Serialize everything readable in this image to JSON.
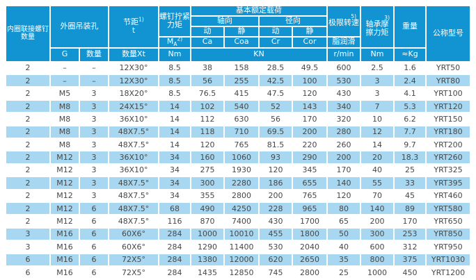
{
  "colors": {
    "header_bg": "#1294d2",
    "stripe_bg": "#a8d8f1",
    "header_text": "#ffffff",
    "data_text": "#474747",
    "grid": "#ffffff"
  },
  "header": {
    "inner_ring_screw_count": "内圈联接螺钉\n数量",
    "outer_ring_lifting_holes": "外圈吊装孔",
    "g": "G",
    "quantity": "数量",
    "pitch": "节距",
    "pitch_sup": "1)",
    "pitch_symbol": "t",
    "pitch_qty_x_t": "数量Xt",
    "screw_tightening_torque": "螺钉拧紧\n力矩",
    "ma_m": "M",
    "ma_sub": "A",
    "ma_sup": "2)",
    "torque_unit": "Nm",
    "basic_rated_load": "基本额定载荷",
    "axial": "轴向",
    "radial": "径向",
    "dynamic_axial": "动",
    "static_axial": "静",
    "dynamic_radial": "动",
    "static_radial": "静",
    "ca": "Ca",
    "coa": "Coa",
    "cr": "Cr",
    "cor": "Cor",
    "load_unit": "KN",
    "limiting_speed": "极限转速",
    "limiting_speed_sup": "5)",
    "grease_lubrication": "脂润滑",
    "speed_unit": "r/min",
    "friction_torque": "轴承摩\n擦力矩",
    "friction_torque_sup": "3)",
    "friction_unit": "Nm",
    "weight": "重量",
    "weight_unit": "≈Kg",
    "model": "公称型号"
  },
  "column_keys": [
    "inner-ring-screw-count",
    "lifting-hole-thread-g",
    "lifting-hole-qty",
    "pitch-qty-x-t",
    "tightening-torque-nm",
    "ca-kn",
    "coa-kn",
    "cr-kn",
    "cor-kn",
    "limiting-speed-rpm",
    "friction-torque-nm",
    "weight-kg",
    "model"
  ],
  "rows": [
    [
      "2",
      "–",
      "–",
      "12X30°",
      "8.5",
      "38",
      "158",
      "28.5",
      "49.5",
      "600",
      "2.5",
      "1.6",
      "YRT50"
    ],
    [
      "2",
      "–",
      "–",
      "12X30°",
      "8.5",
      "56",
      "255",
      "42.5",
      "100",
      "530",
      "3",
      "2.4",
      "YRT80"
    ],
    [
      "2",
      "M5",
      "3",
      "18X20°",
      "8.5",
      "76.5",
      "415",
      "47.5",
      "120",
      "430",
      "3",
      "4.1",
      "YRT100"
    ],
    [
      "2",
      "M8",
      "3",
      "24X15°",
      "14",
      "102",
      "540",
      "52",
      "143",
      "340",
      "7",
      "5.3",
      "YRT120"
    ],
    [
      "2",
      "M8",
      "3",
      "36X10°",
      "14",
      "112",
      "630",
      "56",
      "170",
      "320",
      "10",
      "6.2",
      "YRT150"
    ],
    [
      "2",
      "M8",
      "3",
      "48X7.5°",
      "14",
      "118",
      "710",
      "69.5",
      "200",
      "280",
      "12",
      "7.7",
      "YRT180"
    ],
    [
      "2",
      "M8",
      "3",
      "48X7.5°",
      "14",
      "120",
      "765",
      "81.5",
      "220",
      "260",
      "14",
      "9.7",
      "YRT200"
    ],
    [
      "2",
      "M12",
      "3",
      "36X10°",
      "34",
      "160",
      "1060",
      "93",
      "290",
      "200",
      "20",
      "18.3",
      "YRT260"
    ],
    [
      "2",
      "M12",
      "3",
      "36X10°",
      "34",
      "275",
      "1930",
      "120",
      "345",
      "170",
      "40",
      "25",
      "YRT325"
    ],
    [
      "2",
      "M12",
      "3",
      "48X7.5°",
      "34",
      "300",
      "2280",
      "186",
      "655",
      "140",
      "55",
      "33",
      "YRT395"
    ],
    [
      "2",
      "M12",
      "3",
      "48X7.5°",
      "34",
      "355",
      "2800",
      "200",
      "765",
      "120",
      "70",
      "45",
      "YRT460"
    ],
    [
      "2",
      "M12",
      "6",
      "48X7.5°",
      "68",
      "490",
      "4250",
      "228",
      "965",
      "80",
      "140",
      "89",
      "YRT580"
    ],
    [
      "2",
      "M12",
      "6",
      "48X7.5°",
      "116",
      "870",
      "7400",
      "430",
      "1700",
      "65",
      "200",
      "170",
      "YRT650"
    ],
    [
      "3",
      "M16",
      "6",
      "60X6°",
      "284",
      "1000",
      "10010",
      "455",
      "1800",
      "50",
      "300",
      "253",
      "YRT850"
    ],
    [
      "3",
      "M16",
      "6",
      "60X6°",
      "284",
      "1290",
      "11400",
      "530",
      "2040",
      "40",
      "600",
      "312",
      "YRT950"
    ],
    [
      "6",
      "M16",
      "6",
      "72X5°",
      "284",
      "1380",
      "12000",
      "620",
      "2650",
      "35",
      "800",
      "375",
      "YRT1030"
    ],
    [
      "6",
      "M16",
      "6",
      "72X5°",
      "284",
      "1435",
      "12850",
      "745",
      "2800",
      "25",
      "1000",
      "450",
      "YRT1200"
    ]
  ]
}
